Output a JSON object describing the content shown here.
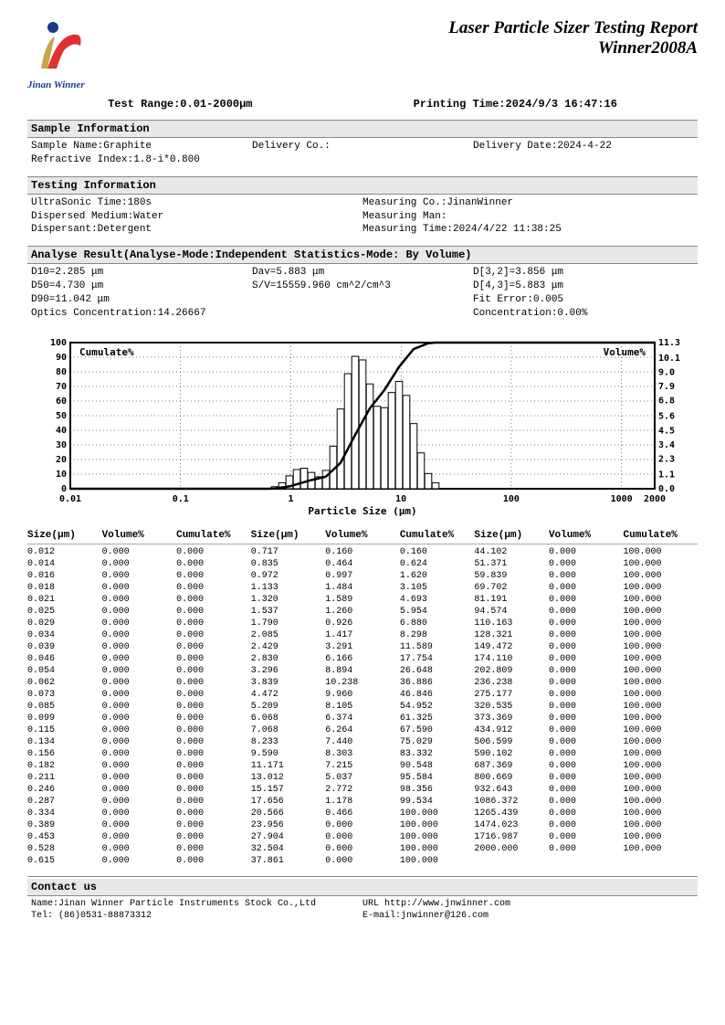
{
  "header": {
    "title": "Laser Particle Sizer Testing Report",
    "model": "Winner2008A",
    "logo_text": "Jinan Winner",
    "logo_colors": {
      "red": "#e03030",
      "gold": "#c9a54a",
      "blue": "#1a3a8a"
    }
  },
  "meta": {
    "range_label": "Test Range:0.01-2000μm",
    "print_label": "Printing Time:2024/9/3 16:47:16"
  },
  "sample": {
    "hdr": "Sample Information",
    "name": "Sample Name:Graphite",
    "delivery_co": "Delivery Co.:",
    "delivery_date": "Delivery Date:2024-4-22",
    "refractive": "Refractive Index:1.8-i*0.800"
  },
  "testing": {
    "hdr": "Testing Information",
    "ultrasonic": "UltraSonic Time:180s",
    "measuring_co": "Measuring Co.:JinanWinner",
    "medium": "Dispersed Medium:Water",
    "measuring_man": "Measuring Man:",
    "dispersant": "Dispersant:Detergent",
    "measuring_time": "Measuring Time:2024/4/22 11:38:25"
  },
  "analyse": {
    "hdr": "Analyse Result(Analyse-Mode:Independent  Statistics-Mode: By Volume)",
    "d10": "D10=2.285 μm",
    "dav": "Dav=5.883 μm",
    "d32": "D[3,2]=3.856 μm",
    "d50": "D50=4.730 μm",
    "sv": "S/V=15559.960 cm^2/cm^3",
    "d43": "D[4,3]=5.883 μm",
    "d90": "D90=11.042 μm",
    "fit": "Fit Error:0.005",
    "optics": "Optics Concentration:14.26667",
    "conc": "Concentration:0.00%"
  },
  "chart": {
    "type": "histogram+line",
    "x_label": "Particle Size (μm)",
    "left_label": "Cumulate%",
    "right_label": "Volume%",
    "x_ticks": [
      "0.01",
      "0.1",
      "1",
      "10",
      "100",
      "1000",
      "2000"
    ],
    "x_tick_pos": [
      0,
      0.189,
      0.377,
      0.566,
      0.755,
      0.943,
      1.0
    ],
    "left_ticks": [
      0,
      10,
      20,
      30,
      40,
      50,
      60,
      70,
      80,
      90,
      100
    ],
    "right_ticks": [
      0.0,
      1.1,
      2.3,
      3.4,
      4.5,
      5.6,
      6.8,
      7.9,
      9.0,
      10.1,
      11.3
    ],
    "bg_color": "#ffffff",
    "grid_color": "#000000",
    "bar_color": "#ffffff",
    "bar_stroke": "#000000",
    "line_color": "#000000",
    "line_width": 2.5,
    "bars": [
      {
        "x": 0.717,
        "v": 0.16
      },
      {
        "x": 0.835,
        "v": 0.464
      },
      {
        "x": 0.972,
        "v": 0.997
      },
      {
        "x": 1.133,
        "v": 1.484
      },
      {
        "x": 1.32,
        "v": 1.589
      },
      {
        "x": 1.537,
        "v": 1.26
      },
      {
        "x": 1.79,
        "v": 0.926
      },
      {
        "x": 2.085,
        "v": 1.417
      },
      {
        "x": 2.429,
        "v": 3.291
      },
      {
        "x": 2.83,
        "v": 6.166
      },
      {
        "x": 3.296,
        "v": 8.894
      },
      {
        "x": 3.839,
        "v": 10.238
      },
      {
        "x": 4.472,
        "v": 9.96
      },
      {
        "x": 5.209,
        "v": 8.105
      },
      {
        "x": 6.068,
        "v": 6.374
      },
      {
        "x": 7.068,
        "v": 6.264
      },
      {
        "x": 8.233,
        "v": 7.44
      },
      {
        "x": 9.59,
        "v": 8.303
      },
      {
        "x": 11.171,
        "v": 7.215
      },
      {
        "x": 13.012,
        "v": 5.037
      },
      {
        "x": 15.157,
        "v": 2.772
      },
      {
        "x": 17.656,
        "v": 1.178
      },
      {
        "x": 20.566,
        "v": 0.466
      }
    ],
    "cumulate": [
      {
        "x": 0.01,
        "c": 0
      },
      {
        "x": 0.615,
        "c": 0
      },
      {
        "x": 0.717,
        "c": 0.16
      },
      {
        "x": 0.972,
        "c": 1.62
      },
      {
        "x": 1.537,
        "c": 5.954
      },
      {
        "x": 2.085,
        "c": 8.298
      },
      {
        "x": 2.83,
        "c": 17.754
      },
      {
        "x": 3.839,
        "c": 36.886
      },
      {
        "x": 5.209,
        "c": 54.952
      },
      {
        "x": 7.068,
        "c": 67.59
      },
      {
        "x": 9.59,
        "c": 83.332
      },
      {
        "x": 13.012,
        "c": 95.584
      },
      {
        "x": 17.656,
        "c": 99.534
      },
      {
        "x": 20.566,
        "c": 100
      },
      {
        "x": 2000,
        "c": 100
      }
    ]
  },
  "table": {
    "headers": [
      "Size(μm)",
      "Volume%",
      "Cumulate%",
      "Size(μm)",
      "Volume%",
      "Cumulate%",
      "Size(μm)",
      "Volume%",
      "Cumulate%"
    ],
    "rows": [
      [
        "0.012",
        "0.000",
        "0.000",
        "0.717",
        "0.160",
        "0.160",
        "44.102",
        "0.000",
        "100.000"
      ],
      [
        "0.014",
        "0.000",
        "0.000",
        "0.835",
        "0.464",
        "0.624",
        "51.371",
        "0.000",
        "100.000"
      ],
      [
        "0.016",
        "0.000",
        "0.000",
        "0.972",
        "0.997",
        "1.620",
        "59.839",
        "0.000",
        "100.000"
      ],
      [
        "0.018",
        "0.000",
        "0.000",
        "1.133",
        "1.484",
        "3.105",
        "69.702",
        "0.000",
        "100.000"
      ],
      [
        "0.021",
        "0.000",
        "0.000",
        "1.320",
        "1.589",
        "4.693",
        "81.191",
        "0.000",
        "100.000"
      ],
      [
        "0.025",
        "0.000",
        "0.000",
        "1.537",
        "1.260",
        "5.954",
        "94.574",
        "0.000",
        "100.000"
      ],
      [
        "0.029",
        "0.000",
        "0.000",
        "1.790",
        "0.926",
        "6.880",
        "110.163",
        "0.000",
        "100.000"
      ],
      [
        "0.034",
        "0.000",
        "0.000",
        "2.085",
        "1.417",
        "8.298",
        "128.321",
        "0.000",
        "100.000"
      ],
      [
        "0.039",
        "0.000",
        "0.000",
        "2.429",
        "3.291",
        "11.589",
        "149.472",
        "0.000",
        "100.000"
      ],
      [
        "0.046",
        "0.000",
        "0.000",
        "2.830",
        "6.166",
        "17.754",
        "174.110",
        "0.000",
        "100.000"
      ],
      [
        "0.054",
        "0.000",
        "0.000",
        "3.296",
        "8.894",
        "26.648",
        "202.809",
        "0.000",
        "100.000"
      ],
      [
        "0.062",
        "0.000",
        "0.000",
        "3.839",
        "10.238",
        "36.886",
        "236.238",
        "0.000",
        "100.000"
      ],
      [
        "0.073",
        "0.000",
        "0.000",
        "4.472",
        "9.960",
        "46.846",
        "275.177",
        "0.000",
        "100.000"
      ],
      [
        "0.085",
        "0.000",
        "0.000",
        "5.209",
        "8.105",
        "54.952",
        "320.535",
        "0.000",
        "100.000"
      ],
      [
        "0.099",
        "0.000",
        "0.000",
        "6.068",
        "6.374",
        "61.325",
        "373.369",
        "0.000",
        "100.000"
      ],
      [
        "0.115",
        "0.000",
        "0.000",
        "7.068",
        "6.264",
        "67.590",
        "434.912",
        "0.000",
        "100.000"
      ],
      [
        "0.134",
        "0.000",
        "0.000",
        "8.233",
        "7.440",
        "75.029",
        "506.599",
        "0.000",
        "100.000"
      ],
      [
        "0.156",
        "0.000",
        "0.000",
        "9.590",
        "8.303",
        "83.332",
        "590.102",
        "0.000",
        "100.000"
      ],
      [
        "0.182",
        "0.000",
        "0.000",
        "11.171",
        "7.215",
        "90.548",
        "687.369",
        "0.000",
        "100.000"
      ],
      [
        "0.211",
        "0.000",
        "0.000",
        "13.012",
        "5.037",
        "95.584",
        "800.669",
        "0.000",
        "100.000"
      ],
      [
        "0.246",
        "0.000",
        "0.000",
        "15.157",
        "2.772",
        "98.356",
        "932.643",
        "0.000",
        "100.000"
      ],
      [
        "0.287",
        "0.000",
        "0.000",
        "17.656",
        "1.178",
        "99.534",
        "1086.372",
        "0.000",
        "100.000"
      ],
      [
        "0.334",
        "0.000",
        "0.000",
        "20.566",
        "0.466",
        "100.000",
        "1265.439",
        "0.000",
        "100.000"
      ],
      [
        "0.389",
        "0.000",
        "0.000",
        "23.956",
        "0.000",
        "100.000",
        "1474.023",
        "0.000",
        "100.000"
      ],
      [
        "0.453",
        "0.000",
        "0.000",
        "27.904",
        "0.000",
        "100.000",
        "1716.987",
        "0.000",
        "100.000"
      ],
      [
        "0.528",
        "0.000",
        "0.000",
        "32.504",
        "0.000",
        "100.000",
        "2000.000",
        "0.000",
        "100.000"
      ],
      [
        "0.615",
        "0.000",
        "0.000",
        "37.861",
        "0.000",
        "100.000",
        "",
        "",
        ""
      ]
    ]
  },
  "contact": {
    "hdr": "Contact us",
    "name": "Name:Jinan Winner Particle Instruments Stock Co.,Ltd",
    "url": "URL http://www.jnwinner.com",
    "tel": "Tel: (86)0531-88873312",
    "email": "E-mail:jnwinner@126.com"
  }
}
